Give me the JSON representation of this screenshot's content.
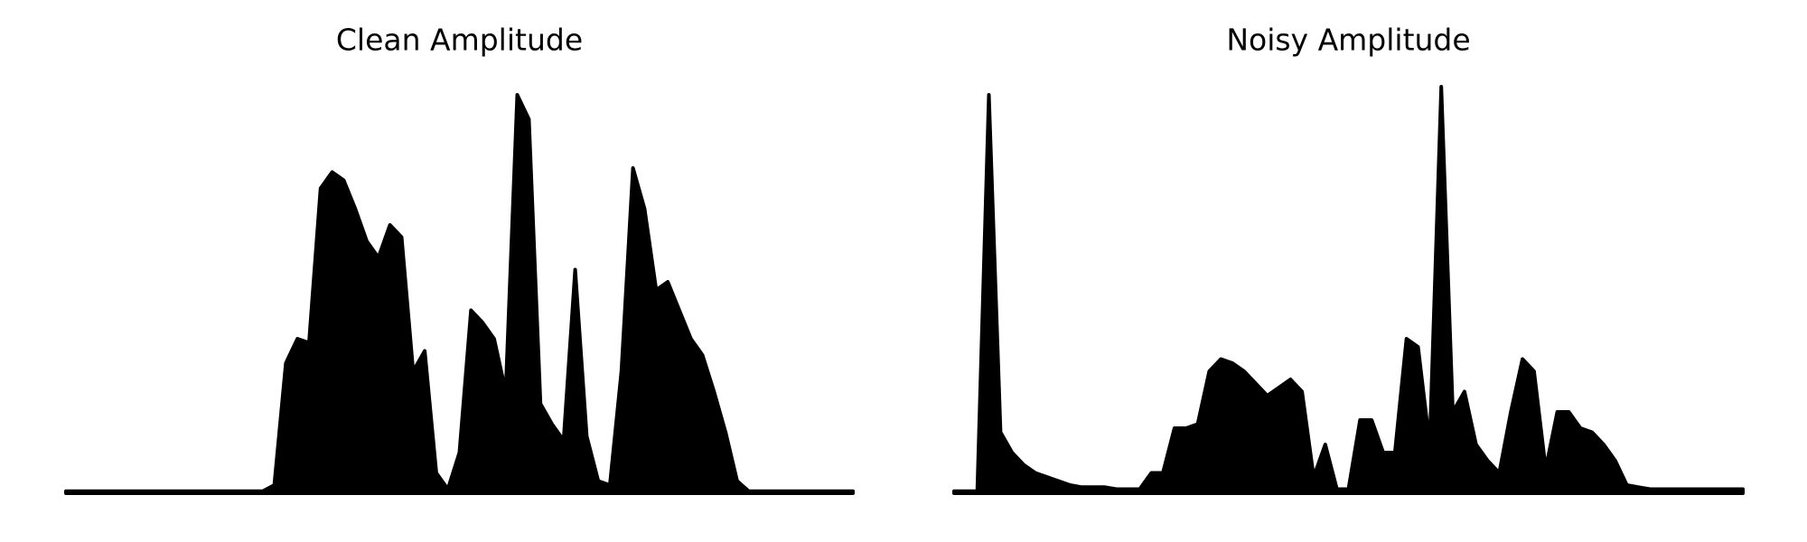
{
  "chart_data": [
    {
      "type": "area",
      "title": "Clean Amplitude",
      "color": "#000000",
      "ylim": [
        0,
        1
      ],
      "values": [
        0.005,
        0.005,
        0.005,
        0.005,
        0.005,
        0.005,
        0.005,
        0.005,
        0.005,
        0.005,
        0.005,
        0.005,
        0.005,
        0.005,
        0.005,
        0.005,
        0.005,
        0.005,
        0.02,
        0.32,
        0.38,
        0.37,
        0.75,
        0.79,
        0.77,
        0.7,
        0.62,
        0.58,
        0.66,
        0.63,
        0.3,
        0.35,
        0.05,
        0.01,
        0.1,
        0.45,
        0.42,
        0.38,
        0.25,
        0.98,
        0.92,
        0.22,
        0.17,
        0.13,
        0.55,
        0.14,
        0.03,
        0.02,
        0.3,
        0.8,
        0.7,
        0.5,
        0.52,
        0.45,
        0.38,
        0.34,
        0.25,
        0.15,
        0.03,
        0.005,
        0.005,
        0.005,
        0.005,
        0.005,
        0.005,
        0.005,
        0.005,
        0.005,
        0.005
      ]
    },
    {
      "type": "area",
      "title": "Noisy Amplitude",
      "color": "#000000",
      "ylim": [
        0,
        1
      ],
      "values": [
        0.005,
        0.005,
        0.005,
        0.98,
        0.15,
        0.1,
        0.07,
        0.05,
        0.04,
        0.03,
        0.02,
        0.015,
        0.015,
        0.015,
        0.01,
        0.01,
        0.01,
        0.05,
        0.05,
        0.16,
        0.16,
        0.17,
        0.3,
        0.33,
        0.32,
        0.3,
        0.27,
        0.24,
        0.26,
        0.28,
        0.25,
        0.04,
        0.12,
        0.01,
        0.01,
        0.18,
        0.18,
        0.1,
        0.1,
        0.38,
        0.36,
        0.12,
        1.0,
        0.2,
        0.25,
        0.12,
        0.08,
        0.05,
        0.2,
        0.33,
        0.3,
        0.06,
        0.2,
        0.2,
        0.16,
        0.15,
        0.12,
        0.08,
        0.02,
        0.015,
        0.01,
        0.01,
        0.01,
        0.01,
        0.01,
        0.01,
        0.01,
        0.01,
        0.01
      ]
    }
  ]
}
